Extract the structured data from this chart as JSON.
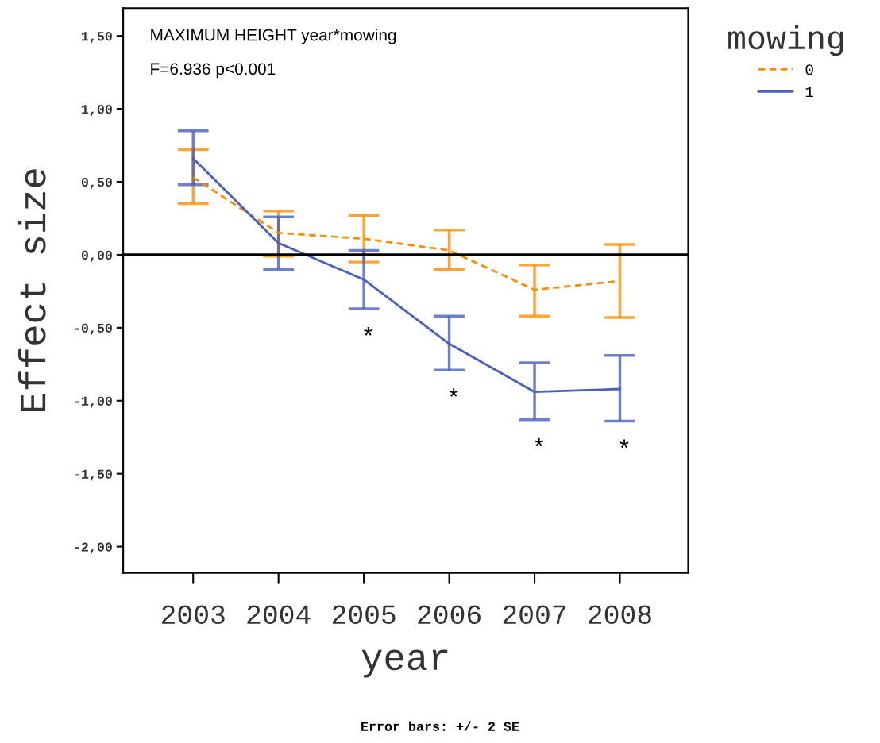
{
  "chart_data": {
    "type": "line",
    "xlabel": "year",
    "ylabel": "Effect size",
    "legend_title": "mowing",
    "categories": [
      "2003",
      "2004",
      "2005",
      "2006",
      "2007",
      "2008"
    ],
    "series": [
      {
        "name": "0",
        "color": "#ff8c00",
        "line_style": "dashed",
        "values": [
          0.53,
          0.15,
          0.11,
          0.03,
          -0.24,
          -0.18
        ],
        "errors": [
          [
            0.35,
            0.72
          ],
          [
            -0.01,
            0.3
          ],
          [
            -0.05,
            0.27
          ],
          [
            -0.1,
            0.17
          ],
          [
            -0.42,
            -0.07
          ],
          [
            -0.43,
            0.07
          ]
        ]
      },
      {
        "name": "1",
        "color": "#4a5fbf",
        "line_style": "solid",
        "values": [
          0.66,
          0.08,
          -0.17,
          -0.61,
          -0.94,
          -0.92
        ],
        "errors": [
          [
            0.48,
            0.85
          ],
          [
            -0.1,
            0.26
          ],
          [
            -0.37,
            0.03
          ],
          [
            -0.79,
            -0.42
          ],
          [
            -1.13,
            -0.74
          ],
          [
            -1.14,
            -0.69
          ]
        ]
      }
    ],
    "ylim": [
      -2.18,
      1.69
    ],
    "yticks": [
      {
        "value": -2.0,
        "label": "-2,00"
      },
      {
        "value": -1.5,
        "label": "-1,50"
      },
      {
        "value": -1.0,
        "label": "-1,00"
      },
      {
        "value": -0.5,
        "label": "-0,50"
      },
      {
        "value": 0.0,
        "label": "0,00"
      },
      {
        "value": 0.5,
        "label": "0,50"
      },
      {
        "value": 1.0,
        "label": "1,00"
      },
      {
        "value": 1.5,
        "label": "1,50"
      }
    ],
    "ref_lines": [
      {
        "axis": "y",
        "value": 0,
        "color": "#000000"
      }
    ],
    "annotations": [
      "MAXIMUM HEIGHT year*mowing",
      "F=6.936 p<0.001",
      {
        "text": "*",
        "x": "2005",
        "y": -0.37
      },
      {
        "text": "*",
        "x": "2006",
        "y": -0.79
      },
      {
        "text": "*",
        "x": "2007",
        "y": -1.13
      },
      {
        "text": "*",
        "x": "2008",
        "y": -1.14
      },
      "Error bars: +/- 2 SE"
    ],
    "grid": false,
    "legend": "top right",
    "marker": "none"
  }
}
